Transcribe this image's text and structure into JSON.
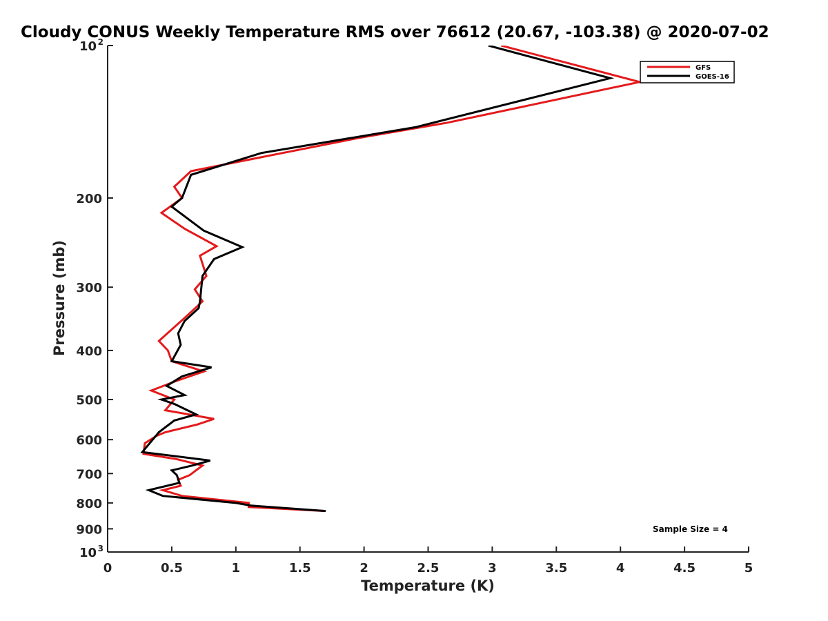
{
  "chart_data": {
    "type": "line",
    "title": "Cloudy CONUS Weekly Temperature RMS over 76612 (20.67, -103.38) @ 2020-07-02",
    "xlabel": "Temperature (K)",
    "ylabel": "Pressure (mb)",
    "xlim": [
      0,
      5
    ],
    "ylim": [
      100,
      1000
    ],
    "y_scale": "log",
    "y_reversed": true,
    "grid": false,
    "legend_position": "top-right",
    "x_ticks": [
      "0",
      "0.5",
      "1",
      "1.5",
      "2",
      "2.5",
      "3",
      "3.5",
      "4",
      "4.5",
      "5"
    ],
    "y_ticks": [
      {
        "value": 100,
        "base": "10",
        "exp": "2"
      },
      {
        "value": 200,
        "label": "200"
      },
      {
        "value": 300,
        "label": "300"
      },
      {
        "value": 400,
        "label": "400"
      },
      {
        "value": 500,
        "label": "500"
      },
      {
        "value": 600,
        "label": "600"
      },
      {
        "value": 700,
        "label": "700"
      },
      {
        "value": 800,
        "label": "800"
      },
      {
        "value": 900,
        "label": "900"
      },
      {
        "value": 1000,
        "base": "10",
        "exp": "3"
      }
    ],
    "series": [
      {
        "name": "GFS",
        "color": "#e41a1c",
        "x": [
          3.07,
          4.15,
          2.65,
          1.97,
          0.65,
          0.52,
          0.58,
          0.42,
          0.6,
          0.85,
          0.72,
          0.77,
          0.68,
          0.74,
          0.6,
          0.4,
          0.47,
          0.5,
          0.75,
          0.53,
          0.34,
          0.52,
          0.45,
          0.83,
          0.7,
          0.45,
          0.38,
          0.29,
          0.28,
          0.53,
          0.74,
          0.64,
          0.55,
          0.57,
          0.43,
          0.58,
          1.1,
          1.1,
          1.7
        ],
        "y": [
          100,
          118,
          142,
          152,
          177,
          190,
          200,
          214,
          230,
          249,
          260,
          285,
          303,
          320,
          345,
          383,
          400,
          420,
          440,
          460,
          480,
          500,
          525,
          546,
          560,
          580,
          590,
          610,
          640,
          655,
          675,
          705,
          720,
          740,
          755,
          775,
          800,
          815,
          830
        ]
      },
      {
        "name": "GOES-16",
        "color": "#000000",
        "x": [
          2.97,
          3.92,
          2.4,
          1.2,
          0.65,
          0.58,
          0.5,
          0.75,
          1.05,
          0.83,
          0.74,
          0.72,
          0.71,
          0.6,
          0.55,
          0.57,
          0.5,
          0.81,
          0.58,
          0.46,
          0.6,
          0.42,
          0.52,
          0.69,
          0.52,
          0.4,
          0.27,
          0.8,
          0.66,
          0.5,
          0.54,
          0.56,
          0.32,
          0.43,
          1.0,
          1.12,
          1.7
        ],
        "y": [
          100,
          116,
          145,
          163,
          180,
          200,
          208,
          232,
          250,
          264,
          285,
          320,
          330,
          350,
          370,
          390,
          420,
          432,
          450,
          470,
          490,
          500,
          510,
          535,
          550,
          580,
          635,
          660,
          675,
          690,
          705,
          730,
          755,
          775,
          800,
          810,
          830
        ]
      }
    ],
    "annotations": [
      {
        "text": "Sample Size = 4",
        "position": "bottom-right"
      }
    ]
  }
}
